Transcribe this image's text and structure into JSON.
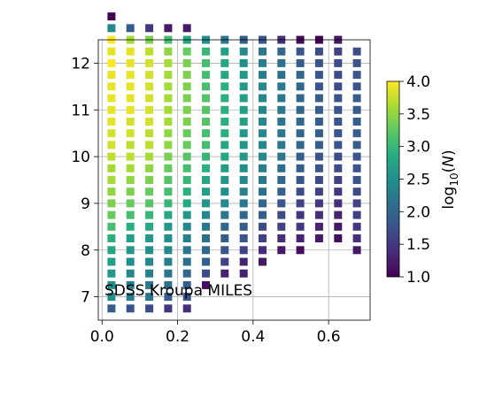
{
  "chart_data": {
    "type": "heatmap",
    "annotation": "SDSS Kroupa MILES",
    "xlabel": "",
    "ylabel": "",
    "xlim": [
      -0.01,
      0.71
    ],
    "ylim": [
      6.5,
      12.5
    ],
    "x_ticks": [
      0.0,
      0.2,
      0.4,
      0.6
    ],
    "x_tick_labels": [
      "0.0",
      "0.2",
      "0.4",
      "0.6"
    ],
    "y_ticks": [
      7,
      8,
      9,
      10,
      11,
      12
    ],
    "y_tick_labels": [
      "7",
      "8",
      "9",
      "10",
      "11",
      "12"
    ],
    "grid": true,
    "colormap": "viridis",
    "colorbar": {
      "label": "log10(N)",
      "label_main": "log",
      "label_sub": "10",
      "label_paren_open": "(",
      "label_var": "N",
      "label_paren_close": ")",
      "range": [
        1.0,
        4.0
      ],
      "ticks": [
        1.0,
        1.5,
        2.0,
        2.5,
        3.0,
        3.5,
        4.0
      ],
      "tick_labels": [
        "1.0",
        "1.5",
        "2.0",
        "2.5",
        "3.0",
        "3.5",
        "4.0"
      ]
    },
    "x_bins": [
      0.025,
      0.075,
      0.125,
      0.175,
      0.225,
      0.275,
      0.325,
      0.375,
      0.425,
      0.475,
      0.525,
      0.575,
      0.625,
      0.675
    ],
    "y_start": 6.75,
    "y_step": 0.25,
    "columns": [
      {
        "x": 0.025,
        "values": [
          1.9,
          2.5,
          2.5,
          2.6,
          2.7,
          2.8,
          2.9,
          3.1,
          3.3,
          3.4,
          3.5,
          3.6,
          3.6,
          3.7,
          3.8,
          3.8,
          3.9,
          3.9,
          3.9,
          3.9,
          3.9,
          4.0,
          3.9,
          4.0,
          2.4,
          1.0
        ]
      },
      {
        "x": 0.075,
        "values": [
          1.8,
          2.3,
          2.3,
          2.4,
          2.5,
          2.6,
          2.7,
          2.9,
          3.1,
          3.3,
          3.4,
          3.5,
          3.6,
          3.7,
          3.7,
          3.8,
          3.8,
          3.9,
          3.9,
          3.9,
          3.9,
          3.9,
          3.9,
          3.6,
          1.9
        ]
      },
      {
        "x": 0.125,
        "values": [
          1.7,
          2.2,
          2.2,
          2.3,
          2.4,
          2.5,
          2.6,
          2.8,
          3.0,
          3.2,
          3.3,
          3.4,
          3.5,
          3.6,
          3.7,
          3.7,
          3.8,
          3.8,
          3.8,
          3.8,
          3.8,
          3.8,
          3.7,
          3.4,
          1.5
        ]
      },
      {
        "x": 0.175,
        "values": [
          1.5,
          1.9,
          2.1,
          2.2,
          2.3,
          2.4,
          2.5,
          2.6,
          2.8,
          3.0,
          3.1,
          3.2,
          3.3,
          3.4,
          3.5,
          3.5,
          3.6,
          3.6,
          3.6,
          3.6,
          3.6,
          3.6,
          3.5,
          3.1,
          1.2
        ]
      },
      {
        "x": 0.225,
        "values": [
          1.4,
          1.8,
          1.9,
          2.0,
          2.1,
          2.2,
          2.3,
          2.4,
          2.6,
          2.8,
          2.9,
          3.0,
          3.1,
          3.2,
          3.3,
          3.3,
          3.4,
          3.4,
          3.4,
          3.4,
          3.4,
          3.4,
          3.3,
          2.8,
          1.2
        ]
      },
      {
        "x": 0.275,
        "values": [
          null,
          null,
          1.1,
          1.7,
          1.9,
          2.0,
          2.1,
          2.2,
          2.4,
          2.6,
          2.7,
          2.8,
          2.9,
          3.0,
          3.1,
          3.1,
          3.2,
          3.2,
          3.2,
          3.1,
          3.1,
          3.1,
          3.0,
          2.5
        ]
      },
      {
        "x": 0.325,
        "values": [
          null,
          null,
          null,
          1.3,
          1.6,
          1.8,
          1.9,
          2.0,
          2.2,
          2.4,
          2.5,
          2.6,
          2.7,
          2.8,
          2.8,
          2.9,
          2.9,
          2.9,
          2.9,
          2.9,
          2.8,
          2.8,
          2.7,
          2.2
        ]
      },
      {
        "x": 0.375,
        "values": [
          null,
          null,
          null,
          1.3,
          1.3,
          1.6,
          1.8,
          1.9,
          2.0,
          2.2,
          2.3,
          2.4,
          2.5,
          2.6,
          2.6,
          2.6,
          2.7,
          2.7,
          2.7,
          2.6,
          2.6,
          2.5,
          2.4,
          1.9
        ]
      },
      {
        "x": 0.425,
        "values": [
          null,
          null,
          null,
          null,
          1.2,
          1.4,
          1.6,
          1.7,
          1.9,
          2.0,
          2.1,
          2.2,
          2.3,
          2.4,
          2.4,
          2.4,
          2.4,
          2.4,
          2.4,
          2.4,
          2.3,
          2.3,
          2.2,
          1.8
        ]
      },
      {
        "x": 0.475,
        "values": [
          null,
          null,
          null,
          null,
          null,
          1.2,
          1.4,
          1.6,
          1.7,
          1.8,
          1.9,
          2.0,
          2.1,
          2.2,
          2.2,
          2.2,
          2.2,
          2.2,
          2.2,
          2.2,
          2.1,
          2.1,
          2.0,
          1.4
        ]
      },
      {
        "x": 0.525,
        "values": [
          null,
          null,
          null,
          null,
          null,
          1.1,
          1.3,
          1.5,
          1.5,
          1.6,
          1.7,
          1.8,
          1.9,
          1.9,
          2.0,
          2.0,
          2.0,
          2.0,
          2.0,
          2.0,
          2.0,
          1.9,
          1.8,
          1.1
        ]
      },
      {
        "x": 0.575,
        "values": [
          null,
          null,
          null,
          null,
          null,
          null,
          1.2,
          1.3,
          1.4,
          1.5,
          1.6,
          1.7,
          1.8,
          1.8,
          1.9,
          1.9,
          1.9,
          1.9,
          1.9,
          1.8,
          1.8,
          1.8,
          1.7,
          1.0
        ]
      },
      {
        "x": 0.625,
        "values": [
          null,
          null,
          null,
          null,
          null,
          null,
          1.1,
          1.2,
          1.3,
          1.4,
          1.5,
          1.6,
          1.7,
          1.7,
          1.8,
          1.8,
          1.8,
          1.8,
          1.8,
          1.7,
          1.7,
          1.7,
          1.6,
          1.2
        ]
      },
      {
        "x": 0.675,
        "values": [
          null,
          null,
          null,
          null,
          null,
          1.2,
          1.4,
          1.5,
          1.6,
          1.6,
          1.7,
          1.8,
          1.8,
          1.8,
          1.9,
          1.9,
          1.9,
          1.9,
          1.9,
          1.8,
          1.8,
          1.8,
          1.7
        ]
      }
    ]
  }
}
